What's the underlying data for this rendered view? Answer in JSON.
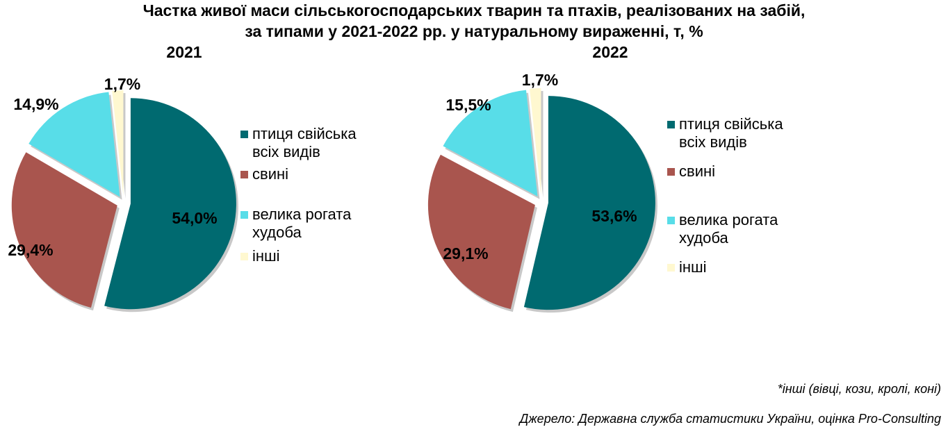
{
  "title_line1": "Частка живої маси сільськогосподарських тварин та птахів, реалізованих на забій,",
  "title_line2": "за типами у 2021-2022 рр. у натуральному вираженні, т, %",
  "note": "*інші (вівці, кози, кролі, коні)",
  "source": "Джерело: Державна служба статистики України, оцінка Pro-Consulting",
  "legend": [
    {
      "label": "птиця свійська\nвсіх  видів",
      "color": "#006A70"
    },
    {
      "label": "свині",
      "color": "#A9554E"
    },
    {
      "label": "велика рогата\nхудоба",
      "color": "#58DDE8"
    },
    {
      "label": "інші",
      "color": "#FFF8D0"
    }
  ],
  "chart_data": [
    {
      "type": "pie",
      "title": "2021",
      "categories": [
        "птиця свійська всіх  видів",
        "свині",
        "велика рогата худоба",
        "інші"
      ],
      "values": [
        54.0,
        29.4,
        14.9,
        1.7
      ],
      "labels": [
        "54,0%",
        "29,4%",
        "14,9%",
        "1,7%"
      ],
      "colors": [
        "#006A70",
        "#A9554E",
        "#58DDE8",
        "#FFF8D0"
      ],
      "exploded": true,
      "legend_position": "right"
    },
    {
      "type": "pie",
      "title": "2022",
      "categories": [
        "птиця свійська всіх  видів",
        "свині",
        "велика рогата худоба",
        "інші"
      ],
      "values": [
        53.6,
        29.1,
        15.5,
        1.7
      ],
      "labels": [
        "53,6%",
        "29,1%",
        "15,5%",
        "1,7%"
      ],
      "colors": [
        "#006A70",
        "#A9554E",
        "#58DDE8",
        "#FFF8D0"
      ],
      "exploded": true,
      "legend_position": "right"
    }
  ]
}
